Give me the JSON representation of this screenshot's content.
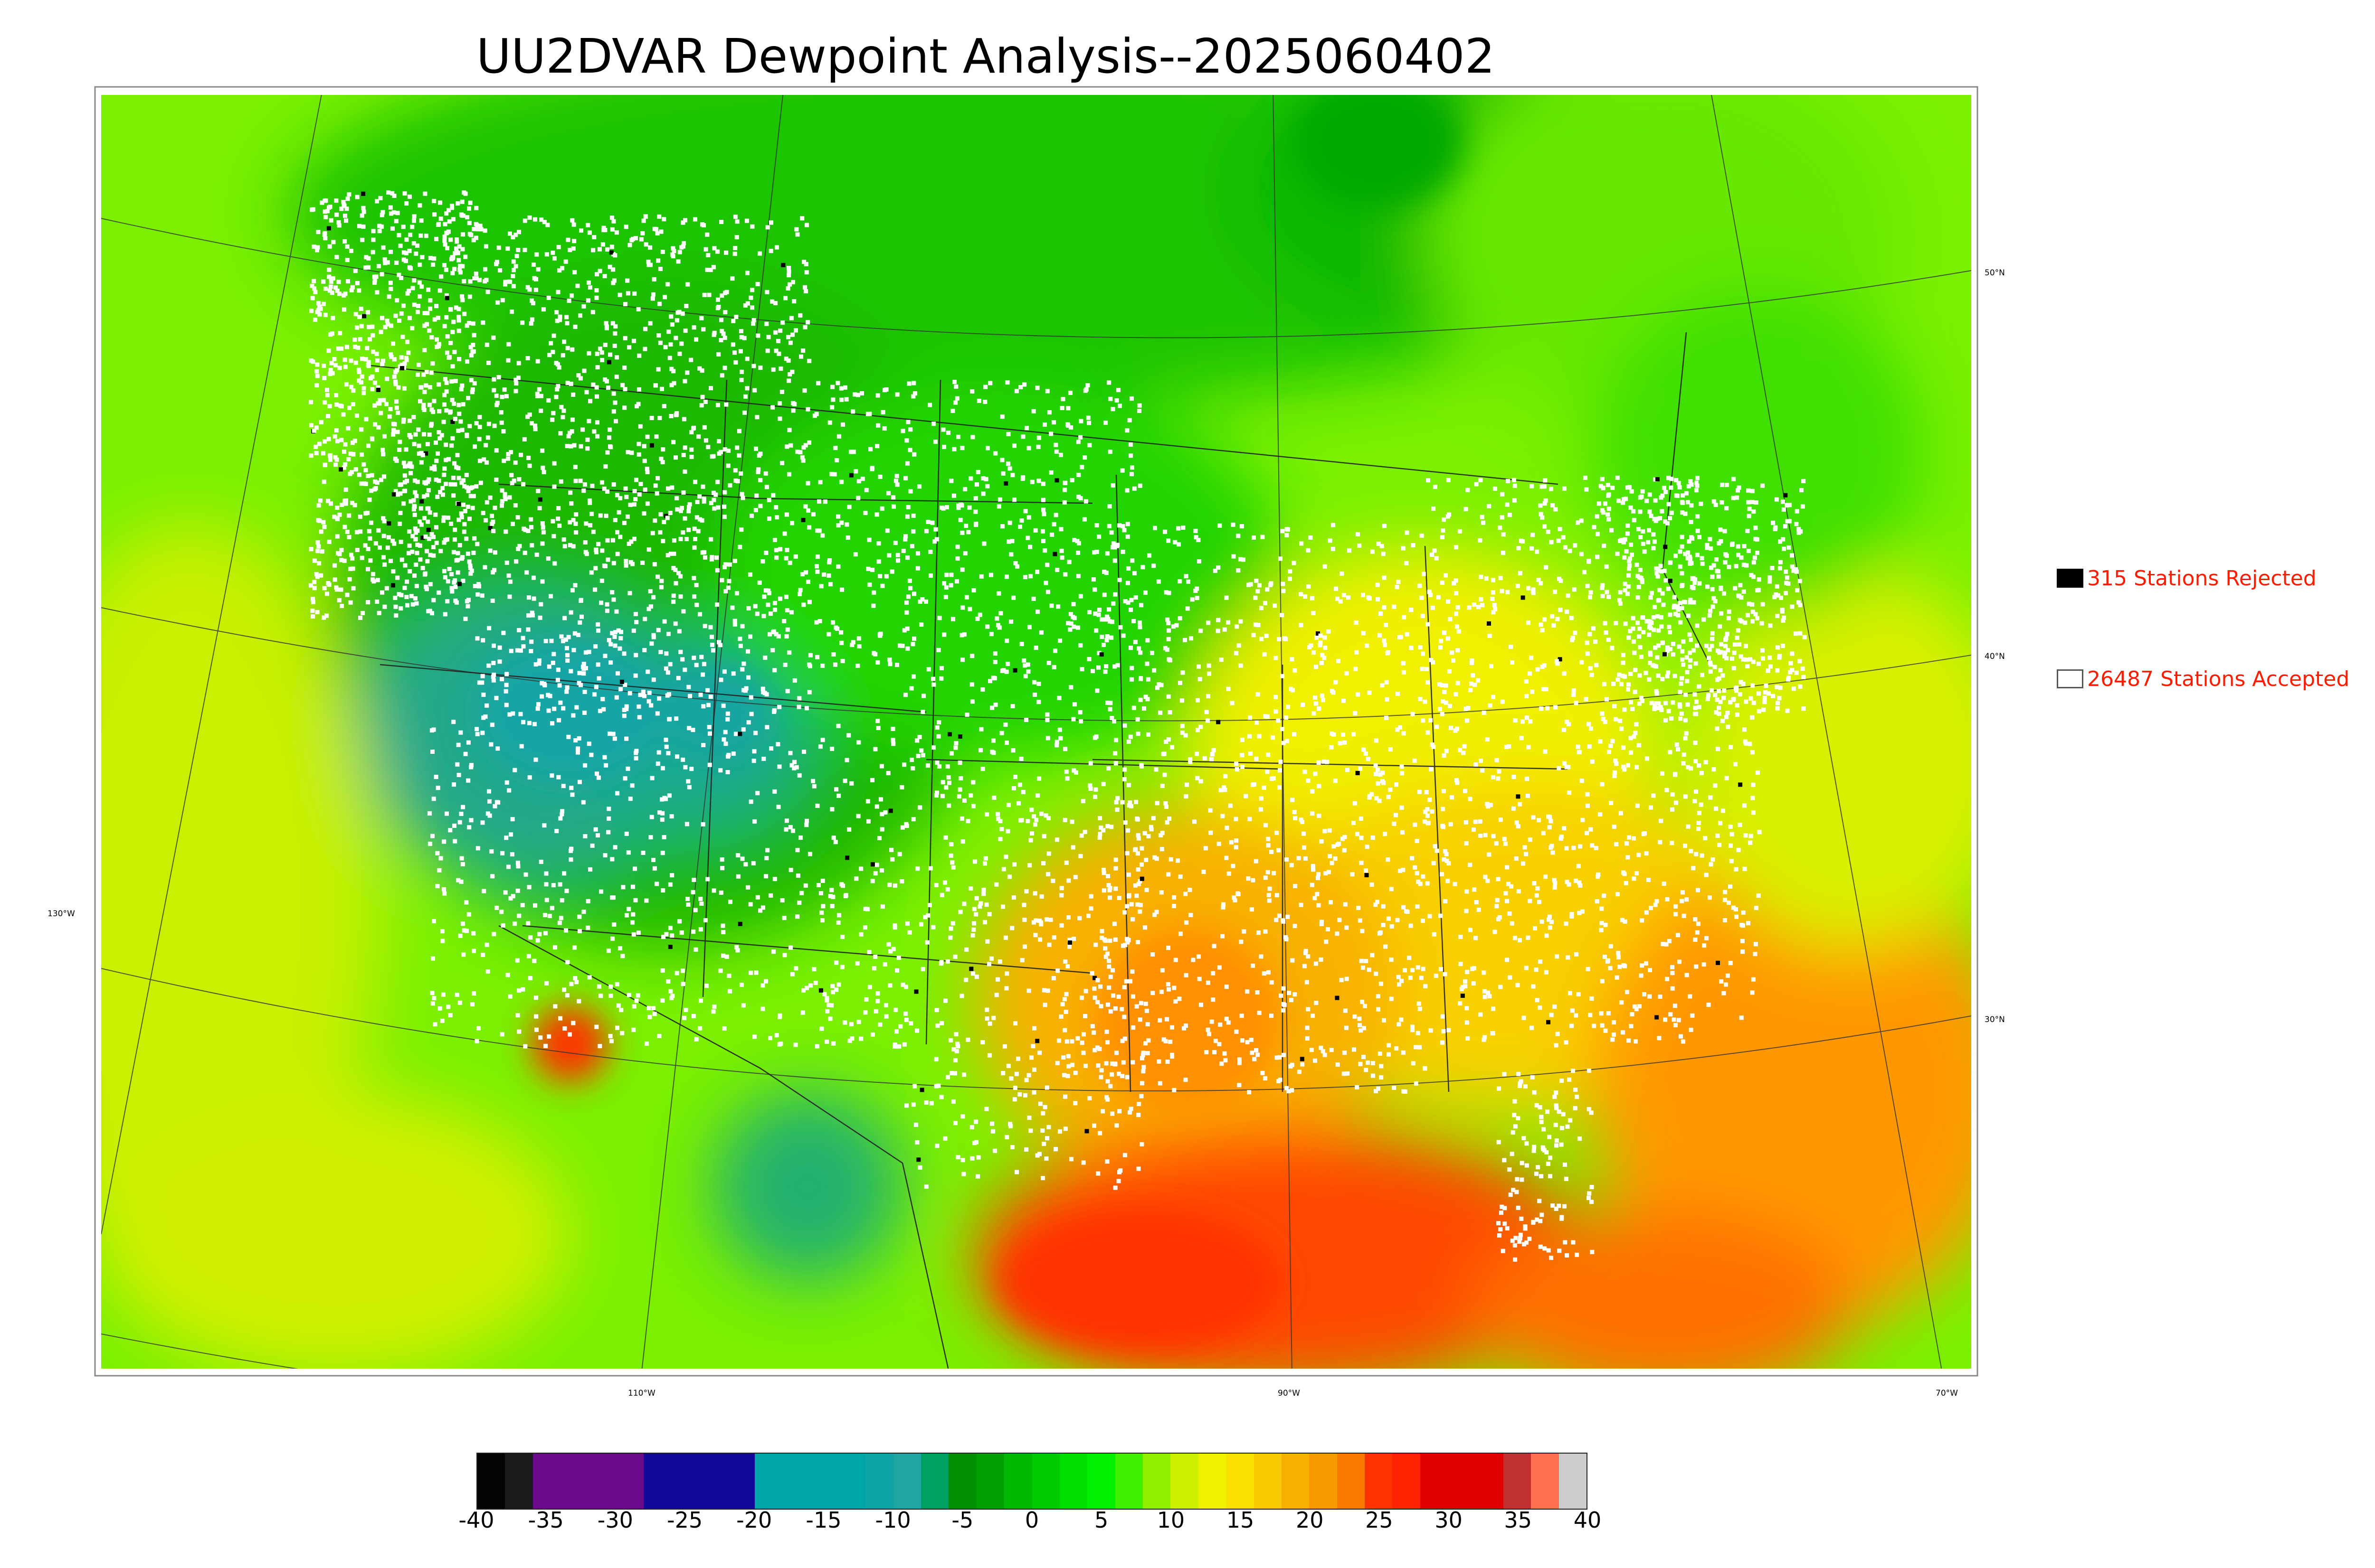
{
  "title": "UU2DVAR Dewpoint Analysis--2025060402",
  "legend": {
    "rejected": {
      "label": "315 Stations Rejected",
      "color": "#000000"
    },
    "accepted": {
      "label": "26487 Stations Accepted",
      "color": "#ffffff"
    }
  },
  "graticule": {
    "latitudes": [
      "50°N",
      "40°N",
      "30°N"
    ],
    "longitudes": [
      "130°W",
      "110°W",
      "90°W",
      "70°W"
    ]
  },
  "colorbar": {
    "ticks": [
      "-40",
      "-35",
      "-30",
      "-25",
      "-20",
      "-15",
      "-10",
      "-5",
      "0",
      "5",
      "10",
      "15",
      "20",
      "25",
      "30",
      "35",
      "40"
    ],
    "colors": [
      "#050505",
      "#1a1a1a",
      "#6a0a8a",
      "#6a0a8a",
      "#6a0a8a",
      "#6a0a8a",
      "#14089a",
      "#14089a",
      "#14089a",
      "#14089a",
      "#00a5a5",
      "#00a5a5",
      "#00a5a5",
      "#00a5a5",
      "#10a5a5",
      "#20a5a5",
      "#00a060",
      "#009000",
      "#00a000",
      "#00b800",
      "#00cc00",
      "#00e000",
      "#00f000",
      "#40f000",
      "#90f000",
      "#ccf000",
      "#f0f000",
      "#f8e000",
      "#f8c800",
      "#f8b000",
      "#f89800",
      "#f87800",
      "#ff3300",
      "#ff2200",
      "#e00000",
      "#e00000",
      "#e00000",
      "#c03030",
      "#ff7050",
      "#cccccc"
    ]
  },
  "colors": {
    "cold": "#00a0a0",
    "cool": "#00c000",
    "mild": "#6af000",
    "warm": "#f8d800",
    "hot": "#ff6a00",
    "hottest": "#ff3a00"
  }
}
